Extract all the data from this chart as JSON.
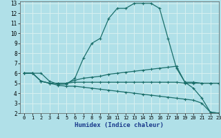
{
  "xlabel": "Humidex (Indice chaleur)",
  "xlim": [
    -0.5,
    23
  ],
  "ylim": [
    2,
    13.2
  ],
  "background_color": "#b0e0e8",
  "grid_color": "#d8f0f0",
  "line_color": "#1a6e6a",
  "line1_x": [
    0,
    1,
    2,
    3,
    4,
    5,
    6,
    7,
    8,
    9,
    10,
    11,
    12,
    13,
    14,
    15,
    16,
    17,
    18,
    19,
    20,
    21,
    22,
    23
  ],
  "line1_y": [
    6.0,
    6.0,
    6.0,
    5.2,
    4.9,
    4.9,
    5.5,
    7.5,
    9.0,
    9.5,
    11.5,
    12.5,
    12.5,
    13.0,
    13.0,
    13.0,
    12.5,
    9.5,
    6.5,
    5.1,
    4.5,
    3.5,
    2.1,
    2.0
  ],
  "line2_x": [
    0,
    1,
    2,
    3,
    4,
    5,
    6,
    7,
    8,
    9,
    10,
    11,
    12,
    13,
    14,
    15,
    16,
    17,
    18,
    19,
    20,
    21,
    22,
    23
  ],
  "line2_y": [
    6.0,
    6.0,
    5.2,
    5.0,
    5.0,
    5.0,
    5.3,
    5.5,
    5.6,
    5.7,
    5.9,
    6.0,
    6.1,
    6.2,
    6.3,
    6.4,
    6.5,
    6.6,
    6.7,
    5.1,
    5.1,
    5.0,
    5.0,
    5.0
  ],
  "line3_x": [
    0,
    1,
    2,
    3,
    4,
    5,
    6,
    7,
    8,
    9,
    10,
    11,
    12,
    13,
    14,
    15,
    16,
    17,
    18,
    19,
    20,
    21,
    22,
    23
  ],
  "line3_y": [
    6.0,
    6.0,
    5.2,
    5.0,
    5.0,
    5.0,
    5.1,
    5.1,
    5.1,
    5.1,
    5.1,
    5.1,
    5.1,
    5.1,
    5.1,
    5.1,
    5.1,
    5.1,
    5.1,
    5.0,
    5.0,
    5.0,
    5.0,
    5.0
  ],
  "line4_x": [
    0,
    1,
    2,
    3,
    4,
    5,
    6,
    7,
    8,
    9,
    10,
    11,
    12,
    13,
    14,
    15,
    16,
    17,
    18,
    19,
    20,
    21,
    22,
    23
  ],
  "line4_y": [
    6.0,
    6.0,
    5.2,
    5.0,
    4.8,
    4.7,
    4.7,
    4.6,
    4.5,
    4.4,
    4.3,
    4.2,
    4.1,
    4.0,
    3.9,
    3.8,
    3.7,
    3.6,
    3.5,
    3.4,
    3.3,
    3.0,
    2.1,
    2.0
  ],
  "xticks": [
    0,
    1,
    2,
    3,
    4,
    5,
    6,
    7,
    8,
    9,
    10,
    11,
    12,
    13,
    14,
    15,
    16,
    17,
    18,
    19,
    20,
    21,
    22,
    23
  ],
  "yticks": [
    2,
    3,
    4,
    5,
    6,
    7,
    8,
    9,
    10,
    11,
    12,
    13
  ]
}
